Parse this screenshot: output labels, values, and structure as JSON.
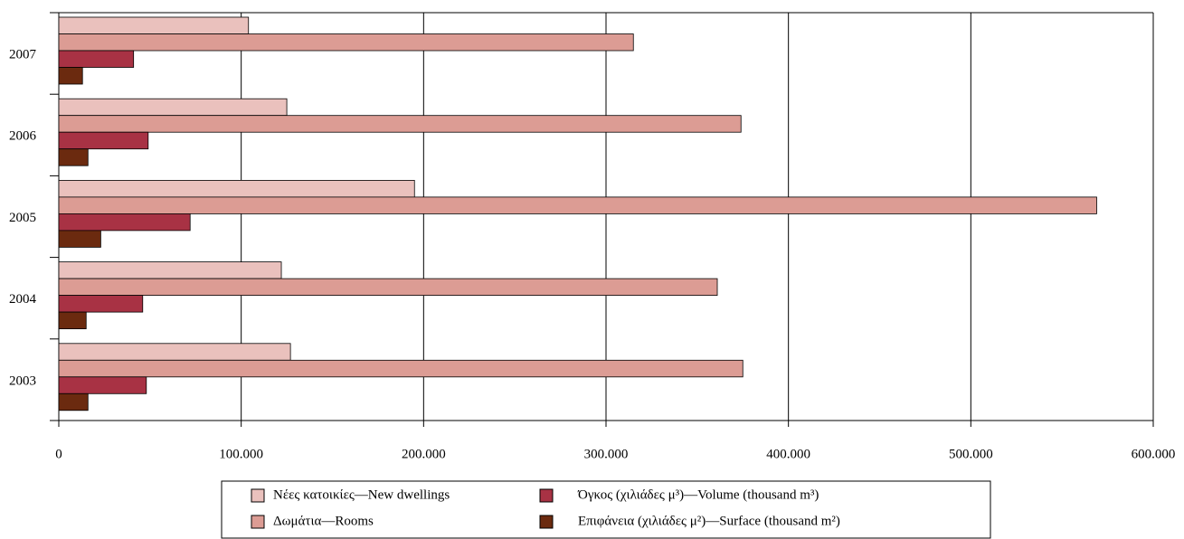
{
  "chart_data": {
    "type": "hbar",
    "categories": [
      "2003",
      "2004",
      "2005",
      "2006",
      "2007"
    ],
    "series": [
      {
        "name": "Νέες κατοικίες—New dwellings",
        "color": "#eac1bd",
        "values": [
          127000,
          122000,
          195000,
          125000,
          104000
        ]
      },
      {
        "name": "Δωμάτια—Rooms",
        "color": "#dc9c94",
        "values": [
          375000,
          361000,
          569000,
          374000,
          315000
        ]
      },
      {
        "name": "Όγκος (χιλιάδες μ³)—Volume (thousand m³)",
        "color": "#a83244",
        "values": [
          48000,
          46000,
          72000,
          49000,
          41000
        ]
      },
      {
        "name": "Επιφάνεια (χιλιάδες μ²)—Surface (thousand m²)",
        "color": "#6b2a0f",
        "values": [
          16000,
          15000,
          23000,
          16000,
          13000
        ]
      }
    ],
    "xlim": [
      0,
      600000
    ],
    "xticks": [
      0,
      {
        "value": 100000,
        "label": "100.000"
      },
      {
        "value": 200000,
        "label": "200.000"
      },
      {
        "value": 300000,
        "label": "300.000"
      },
      {
        "value": 400000,
        "label": "400.000"
      },
      {
        "value": 500000,
        "label": "500.000"
      },
      {
        "value": 600000,
        "label": "600.000"
      }
    ],
    "grid": true,
    "legend": "bottom"
  }
}
